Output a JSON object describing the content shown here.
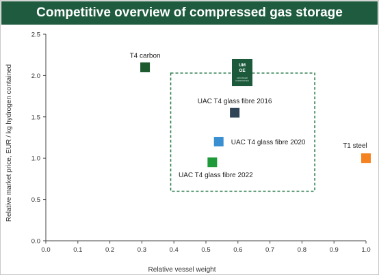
{
  "title": "Competitive overview of compressed gas storage",
  "logo": {
    "line1": "UM",
    "line2": "OE",
    "line3": "ADVANCED",
    "line4": "COMPOSITES",
    "color": "#1d5a3b"
  },
  "chart_data": {
    "type": "scatter",
    "xlabel": "Relative vessel weight",
    "ylabel": "Relative market price, EUR / kg hydrogen contained",
    "xlim": [
      0.0,
      1.0
    ],
    "ylim": [
      0.0,
      2.5
    ],
    "xticks": [
      "0.0",
      "0.1",
      "0.2",
      "0.3",
      "0.4",
      "0.5",
      "0.6",
      "0.7",
      "0.8",
      "0.9",
      "1.0"
    ],
    "yticks": [
      "0.0",
      "0.5",
      "1.0",
      "1.5",
      "2.0",
      "2.5"
    ],
    "grid": false,
    "points": [
      {
        "label": "T4 carbon",
        "x": 0.31,
        "y": 2.1,
        "color": "#1d5a2e",
        "label_pos": "above"
      },
      {
        "label": "UAC T4 glass fibre 2016",
        "x": 0.59,
        "y": 1.55,
        "color": "#2f4457",
        "label_pos": "above"
      },
      {
        "label": "UAC T4 glass fibre 2020",
        "x": 0.54,
        "y": 1.2,
        "color": "#3a8fd1",
        "label_pos": "right"
      },
      {
        "label": "UAC T4 glass fibre 2022",
        "x": 0.52,
        "y": 0.95,
        "color": "#1f9a3a",
        "label_pos": "below"
      },
      {
        "label": "T1 steel",
        "x": 1.0,
        "y": 1.0,
        "color": "#f58220",
        "label_pos": "above"
      }
    ],
    "highlight_box": {
      "x": [
        0.39,
        0.84
      ],
      "y": [
        0.6,
        2.03
      ],
      "color": "#2e7d4f",
      "style": "dashed"
    }
  }
}
